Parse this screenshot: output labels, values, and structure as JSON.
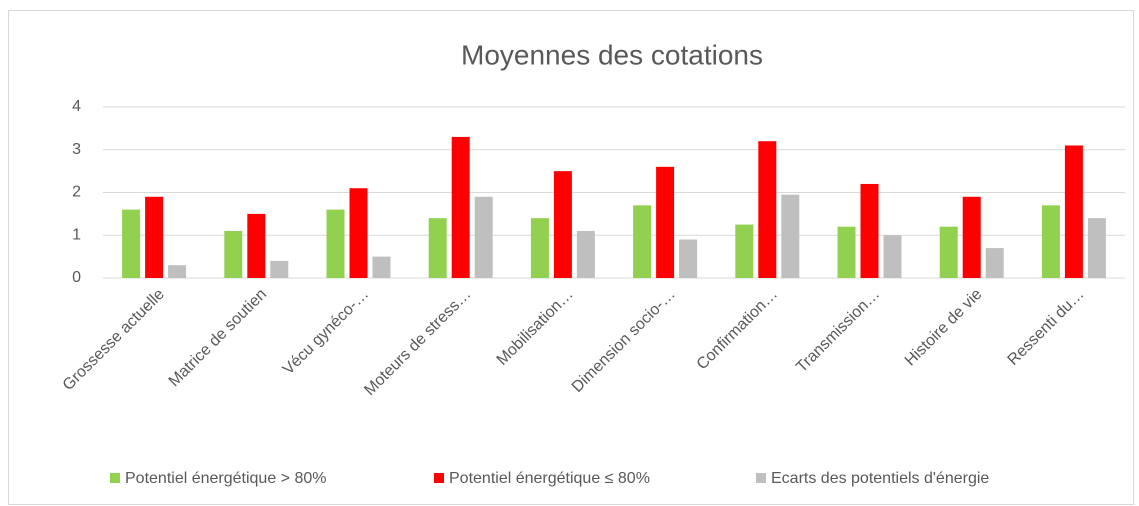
{
  "chart_data": {
    "type": "bar",
    "title": "Moyennes des cotations",
    "categories": [
      "Grossesse actuelle",
      "Matrice de soutien",
      "Vécu gynéco-…",
      "Moteurs de stress…",
      "Mobilisation…",
      "Dimension socio-…",
      "Confirmation…",
      "Transmission…",
      "Histoire de vie",
      "Ressenti du…"
    ],
    "series": [
      {
        "name": "Potentiel énergétique > 80%",
        "color": "#92d050",
        "values": [
          1.6,
          1.1,
          1.6,
          1.4,
          1.4,
          1.7,
          1.25,
          1.2,
          1.2,
          1.7
        ]
      },
      {
        "name": "Potentiel énergétique ≤ 80%",
        "color": "#ff0000",
        "values": [
          1.9,
          1.5,
          2.1,
          3.3,
          2.5,
          2.6,
          3.2,
          2.2,
          1.9,
          3.1
        ]
      },
      {
        "name": "Ecarts des potentiels d'énergie",
        "color": "#bfbfbf",
        "values": [
          0.3,
          0.4,
          0.5,
          1.9,
          1.1,
          0.9,
          1.95,
          1.0,
          0.7,
          1.4
        ]
      }
    ],
    "ylim": [
      0,
      4
    ],
    "yticks": [
      0,
      1,
      2,
      3,
      4
    ],
    "grid": true,
    "legend": "bottom"
  }
}
